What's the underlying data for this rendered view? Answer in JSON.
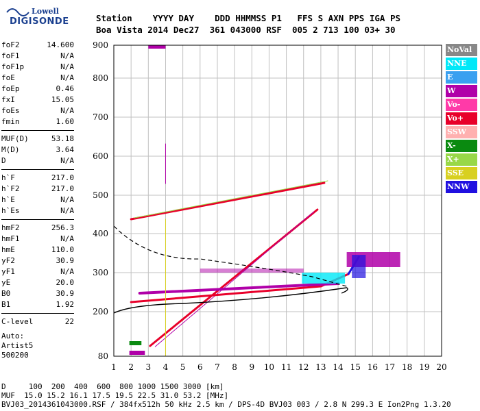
{
  "logo": {
    "line1": "Lowell",
    "line2": "DIGISONDE"
  },
  "header": {
    "labels": "Station    YYYY DAY    DDD HHMMSS P1   FFS S AXN PPS IGA PS",
    "values": "Boa Vista 2014 Dec27  361 043000 RSF  005 2 713 100 03+ 30"
  },
  "params": [
    {
      "k": "foF2",
      "v": "14.600"
    },
    {
      "k": "foF1",
      "v": "N/A"
    },
    {
      "k": "foF1p",
      "v": "N/A"
    },
    {
      "k": "foE",
      "v": "N/A"
    },
    {
      "k": "foEp",
      "v": "0.46"
    },
    {
      "k": "fxI",
      "v": "15.05"
    },
    {
      "k": "foEs",
      "v": "N/A"
    },
    {
      "k": "fmin",
      "v": "1.60"
    },
    {
      "k": "MUF(D)",
      "v": "53.18"
    },
    {
      "k": "M(D)",
      "v": "3.64"
    },
    {
      "k": "D",
      "v": "N/A"
    },
    {
      "k": "h`F",
      "v": "217.0"
    },
    {
      "k": "h`F2",
      "v": "217.0"
    },
    {
      "k": "h`E",
      "v": "N/A"
    },
    {
      "k": "h`Es",
      "v": "N/A"
    },
    {
      "k": "hmF2",
      "v": "256.3"
    },
    {
      "k": "hmF1",
      "v": "N/A"
    },
    {
      "k": "hmE",
      "v": "110.0"
    },
    {
      "k": "yF2",
      "v": "30.9"
    },
    {
      "k": "yF1",
      "v": "N/A"
    },
    {
      "k": "yE",
      "v": "20.0"
    },
    {
      "k": "B0",
      "v": "30.9"
    },
    {
      "k": "B1",
      "v": "1.92"
    },
    {
      "k": "C-level",
      "v": "22"
    }
  ],
  "auto": {
    "line1": "Auto:",
    "line2": "Artist5",
    "line3": "500200"
  },
  "legend": [
    {
      "label": "NoVal",
      "color": "#888888"
    },
    {
      "label": "NNE",
      "color": "#00e8f8"
    },
    {
      "label": "E",
      "color": "#3aa0f0"
    },
    {
      "label": "W",
      "color": "#b000a8"
    },
    {
      "label": "Vo-",
      "color": "#ff3aa8"
    },
    {
      "label": "Vo+",
      "color": "#e8002a"
    },
    {
      "label": "SSW",
      "color": "#ffb0b0"
    },
    {
      "label": "X-",
      "color": "#0a8a10"
    },
    {
      "label": "X+",
      "color": "#98d848"
    },
    {
      "label": "SSE",
      "color": "#d8d020"
    },
    {
      "label": "NNW",
      "color": "#2010e0"
    }
  ],
  "axes": {
    "x_ticks": [
      "1",
      "2",
      "3",
      "4",
      "5",
      "6",
      "7",
      "8",
      "9",
      "10",
      "11",
      "12",
      "13",
      "14",
      "15",
      "16",
      "17",
      "18",
      "19",
      "20"
    ],
    "y_ticks": [
      "80",
      "200",
      "300",
      "400",
      "500",
      "600",
      "700",
      "800",
      "900"
    ]
  },
  "footer": {
    "line1": "D     100  200  400  600  800 1000 1500 3000 [km]",
    "line2": "MUF  15.0 15.2 16.1 17.5 19.5 22.5 31.0 53.2 [MHz]",
    "line3": "BVJ03_2014361043000.RSF / 384fx512h 50 kHz 2.5 km / DPS-4D BVJ03 003 / 2.8 N 299.3 E Ion2Png 1.3.20"
  }
}
